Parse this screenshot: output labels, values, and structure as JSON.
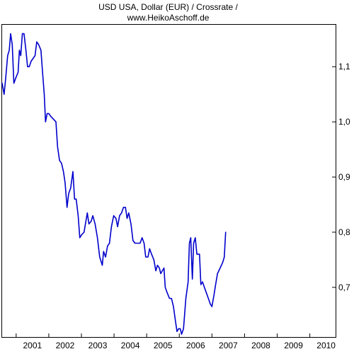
{
  "chart_data": {
    "type": "line",
    "title_lines": [
      "USD USA, Dollar (EUR) / Crossrate /",
      "www.HeikoAschoff.de"
    ],
    "xlabel": "",
    "ylabel": "",
    "x_tick_labels": [
      "2001",
      "2002",
      "2003",
      "2004",
      "2005",
      "2006",
      "2007",
      "2008",
      "2009",
      "2010"
    ],
    "y_tick_labels": [
      {
        "value": 1.1,
        "label": "1,1"
      },
      {
        "value": 1.0,
        "label": "1,0"
      },
      {
        "value": 0.9,
        "label": "0,9"
      },
      {
        "value": 0.8,
        "label": "0,8"
      },
      {
        "value": 0.7,
        "label": "0,7"
      }
    ],
    "xlim": [
      2000.57,
      2010.79
    ],
    "ylim": [
      0.61,
      1.176
    ],
    "y_axis_side": "right",
    "grid": false,
    "line_color": "#0000cc",
    "series": [
      {
        "values": [
          [
            2000.57,
            1.07
          ],
          [
            2000.63,
            1.05
          ],
          [
            2000.68,
            1.08
          ],
          [
            2000.74,
            1.12
          ],
          [
            2000.79,
            1.13
          ],
          [
            2000.83,
            1.16
          ],
          [
            2000.88,
            1.14
          ],
          [
            2000.93,
            1.07
          ],
          [
            2000.99,
            1.08
          ],
          [
            2001.06,
            1.09
          ],
          [
            2001.1,
            1.13
          ],
          [
            2001.14,
            1.12
          ],
          [
            2001.19,
            1.16
          ],
          [
            2001.24,
            1.16
          ],
          [
            2001.3,
            1.13
          ],
          [
            2001.35,
            1.1
          ],
          [
            2001.4,
            1.1
          ],
          [
            2001.46,
            1.11
          ],
          [
            2001.52,
            1.115
          ],
          [
            2001.58,
            1.12
          ],
          [
            2001.63,
            1.145
          ],
          [
            2001.69,
            1.14
          ],
          [
            2001.76,
            1.13
          ],
          [
            2001.81,
            1.09
          ],
          [
            2001.86,
            1.05
          ],
          [
            2001.9,
            1.0
          ],
          [
            2001.95,
            1.015
          ],
          [
            2002.0,
            1.015
          ],
          [
            2002.06,
            1.01
          ],
          [
            2002.14,
            1.005
          ],
          [
            2002.22,
            1.0
          ],
          [
            2002.27,
            0.955
          ],
          [
            2002.33,
            0.93
          ],
          [
            2002.39,
            0.925
          ],
          [
            2002.45,
            0.91
          ],
          [
            2002.5,
            0.89
          ],
          [
            2002.56,
            0.845
          ],
          [
            2002.61,
            0.87
          ],
          [
            2002.67,
            0.88
          ],
          [
            2002.74,
            0.91
          ],
          [
            2002.79,
            0.86
          ],
          [
            2002.84,
            0.86
          ],
          [
            2002.9,
            0.83
          ],
          [
            2002.95,
            0.79
          ],
          [
            2003.0,
            0.795
          ],
          [
            2003.08,
            0.8
          ],
          [
            2003.18,
            0.835
          ],
          [
            2003.23,
            0.815
          ],
          [
            2003.3,
            0.82
          ],
          [
            2003.35,
            0.83
          ],
          [
            2003.42,
            0.815
          ],
          [
            2003.49,
            0.79
          ],
          [
            2003.56,
            0.755
          ],
          [
            2003.64,
            0.74
          ],
          [
            2003.68,
            0.765
          ],
          [
            2003.74,
            0.755
          ],
          [
            2003.8,
            0.775
          ],
          [
            2003.86,
            0.78
          ],
          [
            2003.92,
            0.81
          ],
          [
            2003.99,
            0.83
          ],
          [
            2004.06,
            0.825
          ],
          [
            2004.11,
            0.81
          ],
          [
            2004.17,
            0.83
          ],
          [
            2004.23,
            0.835
          ],
          [
            2004.29,
            0.845
          ],
          [
            2004.35,
            0.845
          ],
          [
            2004.4,
            0.825
          ],
          [
            2004.45,
            0.835
          ],
          [
            2004.52,
            0.815
          ],
          [
            2004.58,
            0.785
          ],
          [
            2004.64,
            0.78
          ],
          [
            2004.7,
            0.78
          ],
          [
            2004.8,
            0.78
          ],
          [
            2004.86,
            0.79
          ],
          [
            2004.92,
            0.78
          ],
          [
            2004.97,
            0.755
          ],
          [
            2005.04,
            0.755
          ],
          [
            2005.09,
            0.77
          ],
          [
            2005.15,
            0.76
          ],
          [
            2005.22,
            0.75
          ],
          [
            2005.28,
            0.73
          ],
          [
            2005.33,
            0.74
          ],
          [
            2005.39,
            0.735
          ],
          [
            2005.43,
            0.725
          ],
          [
            2005.48,
            0.73
          ],
          [
            2005.53,
            0.735
          ],
          [
            2005.57,
            0.7
          ],
          [
            2005.63,
            0.69
          ],
          [
            2005.7,
            0.68
          ],
          [
            2005.76,
            0.68
          ],
          [
            2005.82,
            0.665
          ],
          [
            2005.88,
            0.64
          ],
          [
            2005.93,
            0.62
          ],
          [
            2005.98,
            0.625
          ],
          [
            2006.03,
            0.625
          ],
          [
            2006.07,
            0.615
          ],
          [
            2006.13,
            0.625
          ],
          [
            2006.2,
            0.68
          ],
          [
            2006.27,
            0.71
          ],
          [
            2006.31,
            0.78
          ],
          [
            2006.35,
            0.79
          ],
          [
            2006.4,
            0.715
          ],
          [
            2006.44,
            0.78
          ],
          [
            2006.49,
            0.79
          ],
          [
            2006.54,
            0.76
          ],
          [
            2006.62,
            0.76
          ],
          [
            2006.66,
            0.705
          ],
          [
            2006.71,
            0.71
          ],
          [
            2006.77,
            0.7
          ],
          [
            2006.83,
            0.69
          ],
          [
            2006.89,
            0.68
          ],
          [
            2006.95,
            0.67
          ],
          [
            2007.0,
            0.665
          ],
          [
            2007.06,
            0.685
          ],
          [
            2007.1,
            0.7
          ],
          [
            2007.17,
            0.725
          ],
          [
            2007.25,
            0.735
          ],
          [
            2007.33,
            0.745
          ],
          [
            2007.38,
            0.755
          ],
          [
            2007.42,
            0.8
          ]
        ]
      }
    ]
  }
}
